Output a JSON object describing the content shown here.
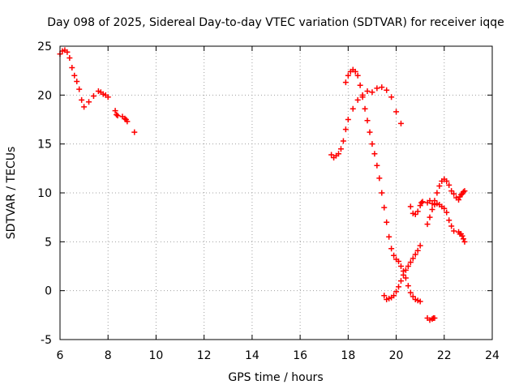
{
  "chart_data": {
    "type": "scatter",
    "title": "Day 098 of 2025, Sidereal Day-to-day VTEC variation (SDTVAR) for receiver iqqe",
    "xlabel": "GPS time / hours",
    "ylabel": "SDTVAR / TECUs",
    "xlim": [
      6,
      24
    ],
    "ylim": [
      -5,
      25
    ],
    "xticks": [
      "6",
      "8",
      "10",
      "12",
      "14",
      "16",
      "18",
      "20",
      "22",
      "24"
    ],
    "yticks": [
      "25",
      "20",
      "15",
      "10",
      "5",
      "0",
      "-5"
    ],
    "grid": true,
    "marker": "+",
    "color": "#ff0000",
    "series": [
      {
        "name": "seg1",
        "x": [
          6.0,
          6.1,
          6.2,
          6.3,
          6.4,
          6.5,
          6.6,
          6.7,
          6.8,
          6.9,
          7.0,
          7.2,
          7.4,
          7.6,
          7.7,
          7.8,
          7.9,
          8.0
        ],
        "y": [
          24.2,
          24.5,
          24.6,
          24.4,
          23.8,
          22.8,
          22.0,
          21.4,
          20.6,
          19.5,
          18.8,
          19.3,
          19.9,
          20.4,
          20.3,
          20.1,
          20.0,
          19.8
        ]
      },
      {
        "name": "seg2",
        "x": [
          8.3,
          8.35,
          8.4,
          8.6,
          8.7,
          8.75,
          8.8
        ],
        "y": [
          18.4,
          18.0,
          17.9,
          17.8,
          17.6,
          17.5,
          17.3
        ]
      },
      {
        "name": "seg3",
        "x": [
          9.1
        ],
        "y": [
          16.2
        ]
      },
      {
        "name": "seg4",
        "x": [
          17.3,
          17.4,
          17.5,
          17.6,
          17.7,
          17.8,
          17.9,
          18.0,
          18.2,
          18.4,
          18.6,
          18.8,
          19.0,
          19.2,
          19.4,
          19.6,
          19.8,
          20.0,
          20.2
        ],
        "y": [
          13.9,
          13.6,
          13.8,
          14.0,
          14.5,
          15.3,
          16.5,
          17.5,
          18.6,
          19.5,
          20.0,
          20.4,
          20.3,
          20.7,
          20.8,
          20.5,
          19.8,
          18.3,
          17.1
        ]
      },
      {
        "name": "seg5",
        "x": [
          17.9,
          18.0,
          18.1,
          18.2,
          18.3,
          18.4,
          18.5,
          18.6,
          18.7,
          18.8,
          18.9,
          19.0,
          19.1,
          19.2,
          19.3,
          19.4,
          19.5,
          19.6,
          19.7,
          19.8,
          19.9,
          20.0,
          20.1,
          20.2,
          20.3,
          20.4,
          20.5,
          20.6,
          20.7,
          20.8,
          20.9,
          21.0
        ],
        "y": [
          21.3,
          22.0,
          22.4,
          22.6,
          22.4,
          22.0,
          21.0,
          19.8,
          18.6,
          17.4,
          16.2,
          15.0,
          14.0,
          12.8,
          11.5,
          10.0,
          8.5,
          7.0,
          5.5,
          4.3,
          3.6,
          3.2,
          3.0,
          2.5,
          2.0,
          1.3,
          0.5,
          -0.2,
          -0.6,
          -0.9,
          -1.0,
          -1.1
        ]
      },
      {
        "name": "seg6",
        "x": [
          19.5,
          19.6,
          19.7,
          19.8,
          19.9,
          20.0,
          20.1,
          20.2,
          20.3,
          20.4,
          20.5,
          20.6,
          20.7,
          20.8,
          20.9,
          21.0
        ],
        "y": [
          -0.5,
          -0.9,
          -0.8,
          -0.7,
          -0.5,
          -0.1,
          0.4,
          1.0,
          1.6,
          2.1,
          2.5,
          2.9,
          3.3,
          3.7,
          4.1,
          4.6
        ]
      },
      {
        "name": "seg7",
        "x": [
          20.6,
          20.7,
          20.8,
          20.9,
          21.0,
          21.05,
          21.1
        ],
        "y": [
          8.6,
          7.9,
          7.8,
          8.1,
          8.7,
          9.0,
          9.1
        ]
      },
      {
        "name": "seg8",
        "x": [
          21.3,
          21.4,
          21.5,
          21.6,
          21.7,
          21.8,
          21.9,
          22.0,
          22.1,
          22.2,
          22.3,
          22.4,
          22.5
        ],
        "y": [
          6.8,
          7.5,
          8.3,
          9.2,
          10.0,
          10.7,
          11.2,
          11.4,
          11.2,
          10.8,
          10.2,
          9.9,
          9.5
        ]
      },
      {
        "name": "seg9",
        "x": [
          21.3,
          21.4,
          21.5,
          21.6,
          21.7,
          21.8,
          21.9,
          22.0,
          22.1,
          22.2,
          22.3,
          22.4
        ],
        "y": [
          9.0,
          9.2,
          8.9,
          8.8,
          8.9,
          8.8,
          8.6,
          8.4,
          8.0,
          7.2,
          6.6,
          6.1
        ]
      },
      {
        "name": "seg10",
        "x": [
          22.6,
          22.65,
          22.7,
          22.75,
          22.8,
          22.85
        ],
        "y": [
          9.3,
          9.6,
          9.8,
          9.9,
          10.1,
          10.2
        ]
      },
      {
        "name": "seg11",
        "x": [
          22.6,
          22.65,
          22.7,
          22.75,
          22.8,
          22.85
        ],
        "y": [
          6.0,
          5.8,
          5.8,
          5.6,
          5.3,
          5.0
        ]
      },
      {
        "name": "seg12",
        "x": [
          21.3,
          21.4,
          21.5,
          21.55,
          21.6
        ],
        "y": [
          -2.8,
          -3.0,
          -2.9,
          -2.8,
          -2.8
        ]
      }
    ]
  }
}
